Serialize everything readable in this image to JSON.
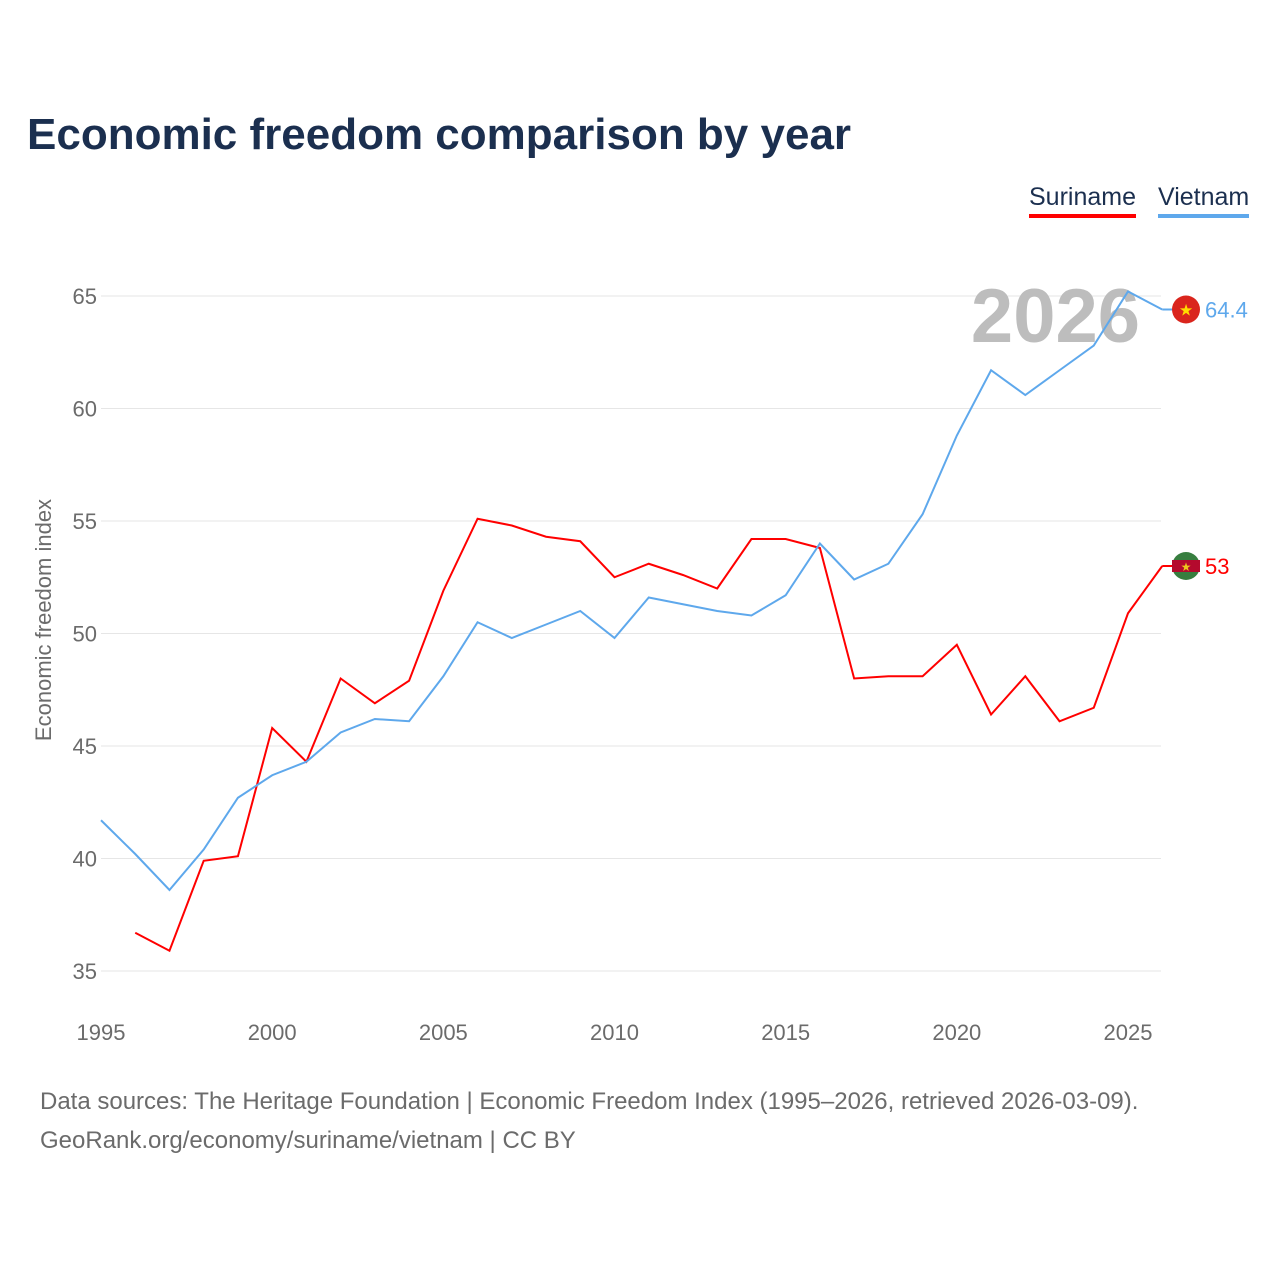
{
  "title": "Economic freedom comparison by year",
  "footer": {
    "line1": "Data sources: The Heritage Foundation | Economic Freedom Index (1995–2026, retrieved 2026-03-09).",
    "line2": "GeoRank.org/economy/suriname/vietnam | CC BY"
  },
  "chart_data": {
    "type": "line",
    "title": "Economic freedom comparison by year",
    "xlabel": "",
    "ylabel": "Economic freedom index",
    "xlim": [
      1995,
      2026
    ],
    "ylim": [
      34,
      67
    ],
    "yticks": [
      35,
      40,
      45,
      50,
      55,
      60,
      65
    ],
    "xticks": [
      1995,
      2000,
      2005,
      2010,
      2015,
      2020,
      2025
    ],
    "grid": true,
    "legend": "top-right",
    "year_watermark": "2026",
    "series": [
      {
        "name": "Suriname",
        "color": "#ff0000",
        "end_label": "53",
        "flag": "suriname",
        "x": [
          1996,
          1997,
          1998,
          1999,
          2000,
          2001,
          2002,
          2003,
          2004,
          2005,
          2006,
          2007,
          2008,
          2009,
          2010,
          2011,
          2012,
          2013,
          2014,
          2015,
          2016,
          2017,
          2018,
          2019,
          2020,
          2021,
          2022,
          2023,
          2024,
          2025,
          2026
        ],
        "values": [
          36.7,
          35.9,
          39.9,
          40.1,
          45.8,
          44.3,
          48.0,
          46.9,
          47.9,
          51.9,
          55.1,
          54.8,
          54.3,
          54.1,
          52.5,
          53.1,
          52.6,
          52.0,
          54.2,
          54.2,
          53.8,
          48.0,
          48.1,
          48.1,
          49.5,
          46.4,
          48.1,
          46.1,
          46.7,
          50.9,
          53.0
        ]
      },
      {
        "name": "Vietnam",
        "color": "#5ea8ec",
        "end_label": "64.4",
        "flag": "vietnam",
        "x": [
          1995,
          1996,
          1997,
          1998,
          1999,
          2000,
          2001,
          2002,
          2003,
          2004,
          2005,
          2006,
          2007,
          2008,
          2009,
          2010,
          2011,
          2012,
          2013,
          2014,
          2015,
          2016,
          2017,
          2018,
          2019,
          2020,
          2021,
          2022,
          2023,
          2024,
          2025,
          2026
        ],
        "values": [
          41.7,
          40.2,
          38.6,
          40.4,
          42.7,
          43.7,
          44.3,
          45.6,
          46.2,
          46.1,
          48.1,
          50.5,
          49.8,
          50.4,
          51.0,
          49.8,
          51.6,
          51.3,
          51.0,
          50.8,
          51.7,
          54.0,
          52.4,
          53.1,
          55.3,
          58.8,
          61.7,
          60.6,
          61.7,
          62.8,
          65.2,
          64.4
        ]
      }
    ]
  }
}
